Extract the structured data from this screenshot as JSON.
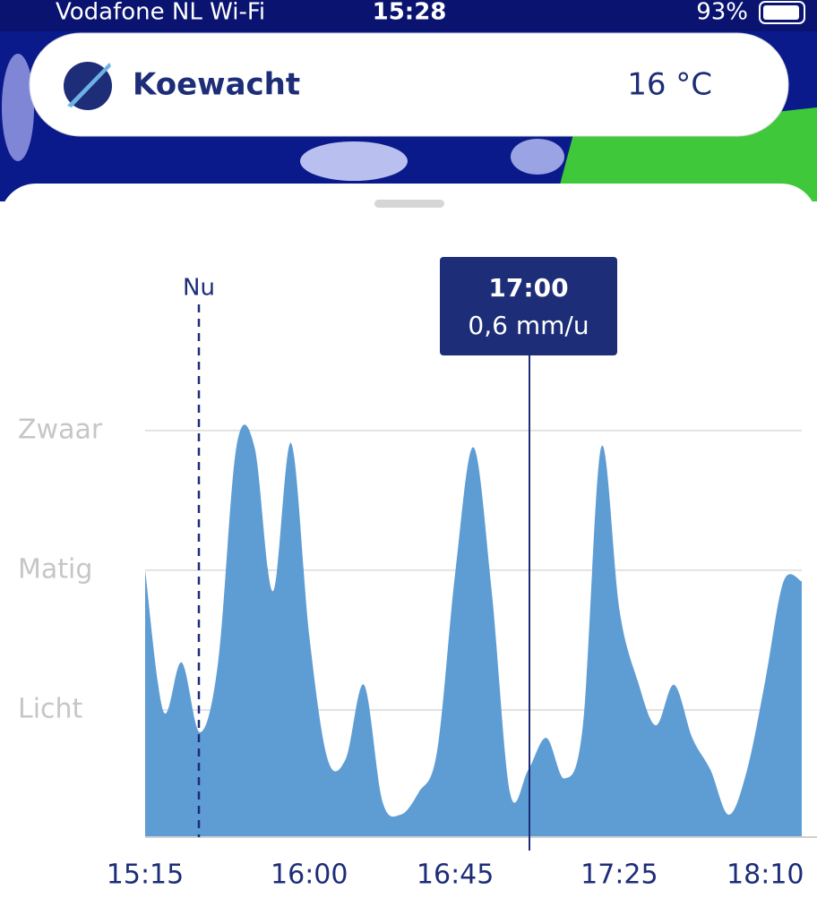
{
  "status_bar": {
    "carrier": "Vodafone NL Wi-Fi",
    "time": "15:28",
    "battery": "93%"
  },
  "header": {
    "location": "Koewacht",
    "temperature": "16 °C"
  },
  "chart_data": {
    "type": "area",
    "categories": [
      "15:15",
      null,
      null,
      null,
      null,
      null,
      null,
      null,
      null,
      "16:00",
      null,
      null,
      null,
      null,
      null,
      null,
      null,
      "16:45",
      null,
      null,
      null,
      null,
      null,
      null,
      null,
      null,
      "17:25",
      null,
      null,
      null,
      null,
      null,
      null,
      null,
      "18:10",
      null,
      null
    ],
    "values": [
      2.0,
      0.99,
      1.34,
      0.84,
      1.34,
      2.88,
      2.88,
      1.85,
      2.91,
      1.53,
      0.65,
      0.65,
      1.18,
      0.35,
      0.25,
      0.41,
      0.7,
      1.98,
      2.88,
      1.85,
      0.41,
      0.57,
      0.8,
      0.51,
      0.89,
      2.88,
      1.72,
      1.21,
      0.89,
      1.18,
      0.8,
      0.57,
      0.25,
      0.57,
      1.21,
      1.92,
      1.92
    ],
    "color": "#5e9dd3",
    "ylim": [
      0.09,
      3.39
    ],
    "yticks": [
      {
        "value": 1,
        "label": "Licht"
      },
      {
        "value": 2,
        "label": "Matig"
      },
      {
        "value": 3,
        "label": "Zwaar"
      }
    ],
    "grid": true,
    "now_label": "Nu",
    "tooltip": {
      "time": "17:00",
      "value": "0,6 mm/u"
    }
  }
}
